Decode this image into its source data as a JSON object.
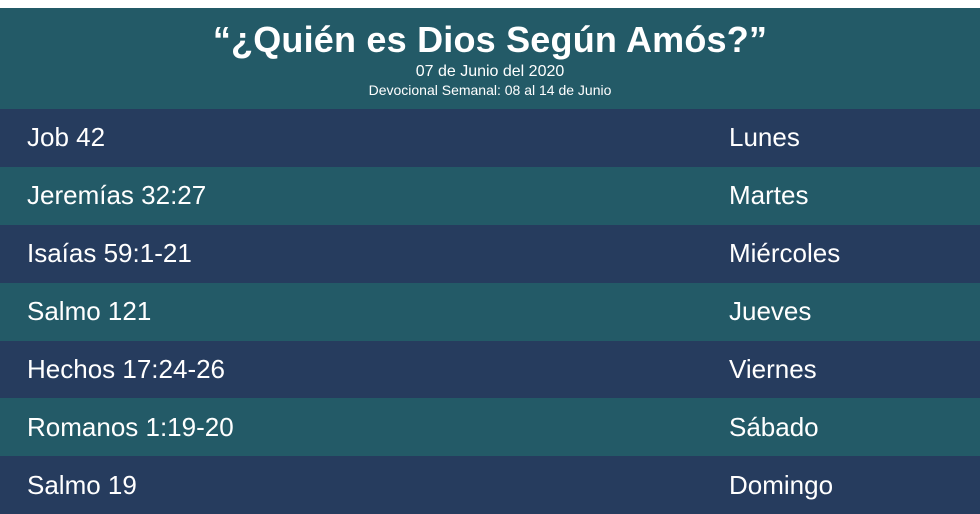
{
  "header": {
    "title": "“¿Quién es Dios Según Amós?”",
    "date": "07 de Junio del 2020",
    "weekly": "Devocional Semanal: 08 al 14  de Junio"
  },
  "schedule": [
    {
      "reference": "Job 42",
      "day": "Lunes"
    },
    {
      "reference": "Jeremías 32:27",
      "day": "Martes"
    },
    {
      "reference": "Isaías 59:1-21",
      "day": "Miércoles"
    },
    {
      "reference": "Salmo 121",
      "day": "Jueves"
    },
    {
      "reference": "Hechos 17:24-26",
      "day": "Viernes"
    },
    {
      "reference": "Romanos 1:19-20",
      "day": "Sábado"
    },
    {
      "reference": "Salmo 19",
      "day": "Domingo"
    }
  ],
  "colors": {
    "teal": "#235a67",
    "navy": "#263c5e",
    "text": "#ffffff"
  }
}
